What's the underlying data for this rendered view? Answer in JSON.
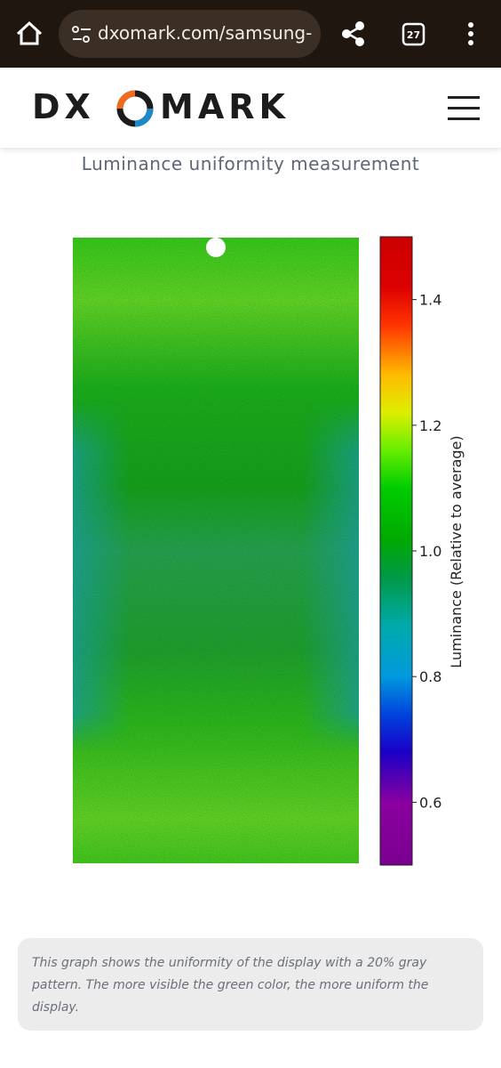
{
  "browser": {
    "url": "dxomark.com/samsung-",
    "tab_count": "27"
  },
  "header": {
    "logo_left": "DX",
    "logo_right": "MARK"
  },
  "figure": {
    "title": "Luminance uniformity measurement",
    "colorbar": {
      "label": "Luminance (Relative to average)",
      "lim": [
        0.5,
        1.5
      ],
      "ticks": [
        0.6,
        0.8,
        {
          "value": 1,
          "label": "1.0"
        },
        1.2,
        1.4
      ]
    }
  },
  "caption": "This graph shows the uniformity of the display with a 20% gray pattern. The more visible the green color, the more uniform the display."
}
